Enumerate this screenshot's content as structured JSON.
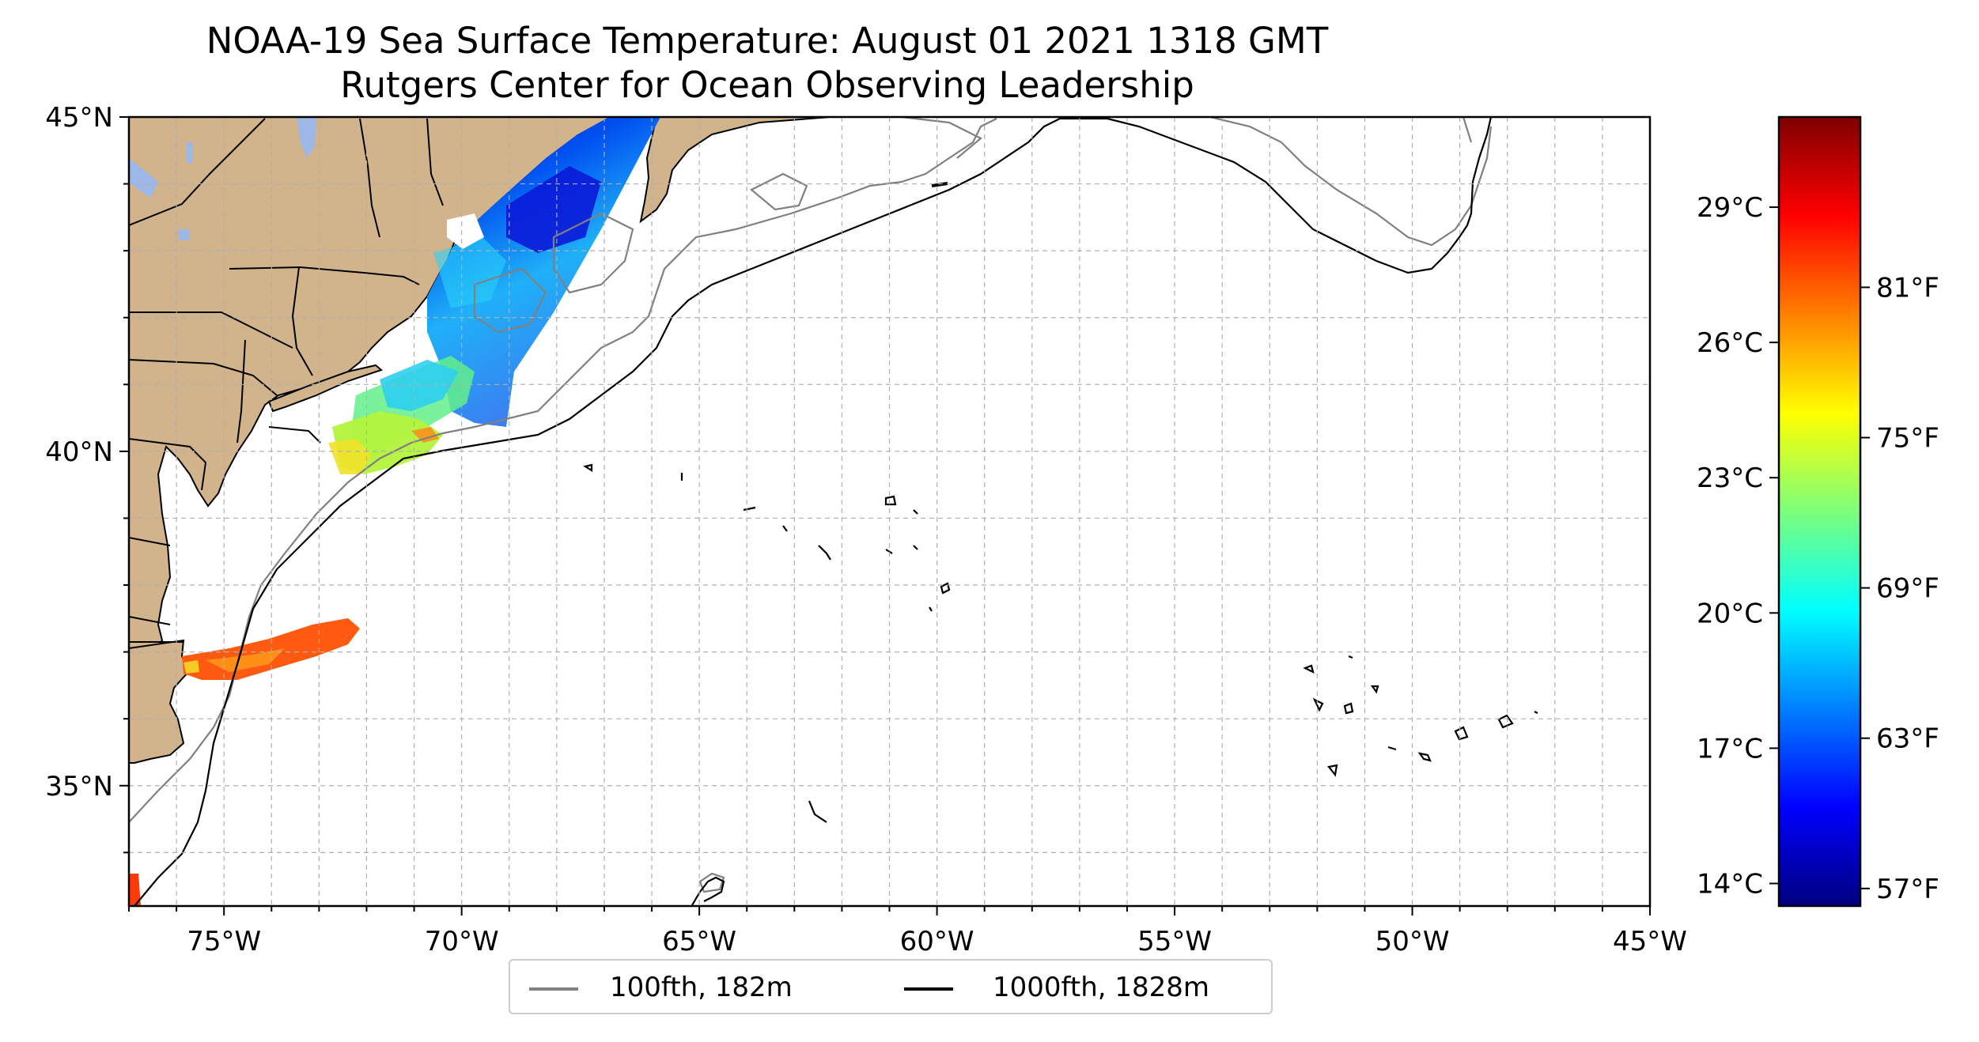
{
  "title": "NOAA-19 Sea Surface Temperature: August 01 2021 1318 GMT",
  "subtitle": "Rutgers Center for Ocean Observing Leadership",
  "map": {
    "lon_range": [
      -77,
      -45
    ],
    "lat_range": [
      33.2,
      45
    ],
    "lon_ticks": [
      "75°W",
      "70°W",
      "65°W",
      "60°W",
      "55°W",
      "50°W",
      "45°W"
    ],
    "lat_ticks": [
      "45°N",
      "40°N",
      "35°N"
    ],
    "grid": "dashed, 1° spacing",
    "land_color": "#D2B48C",
    "lakes_color": "#9DB8E6"
  },
  "colorbar": {
    "colormap": "jet",
    "celsius_ticks": [
      "29°C",
      "26°C",
      "23°C",
      "20°C",
      "17°C",
      "14°C"
    ],
    "fahrenheit_ticks": [
      "81°F",
      "75°F",
      "69°F",
      "63°F",
      "57°F"
    ],
    "range_c": [
      13.5,
      31
    ]
  },
  "legend": {
    "items": [
      {
        "label": "100fth, 182m",
        "color": "#808080"
      },
      {
        "label": "1000fth, 1828m",
        "color": "#000000"
      }
    ]
  }
}
